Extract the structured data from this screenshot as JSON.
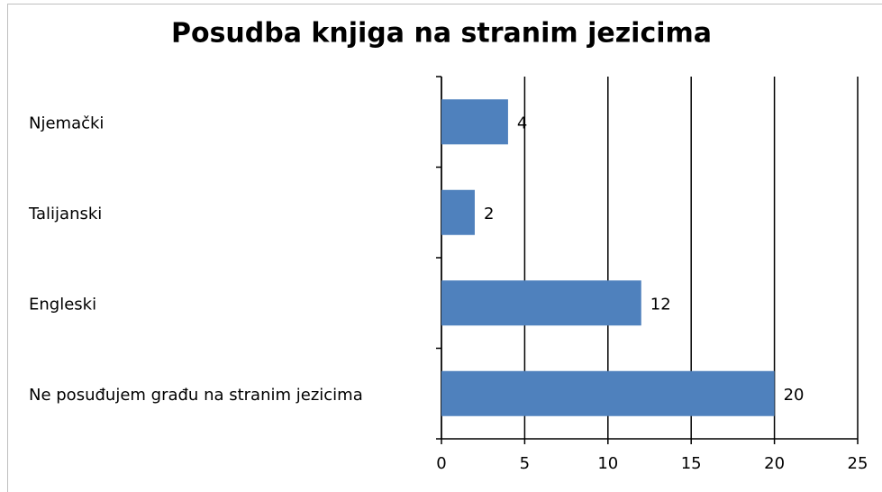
{
  "chart_data": {
    "type": "bar",
    "orientation": "horizontal",
    "title": "Posudba knjiga na stranim jezicima",
    "categories": [
      "Njemački",
      "Talijanski",
      "Engleski",
      "Ne posuđujem građu na stranim jezicima"
    ],
    "values": [
      4,
      2,
      12,
      20
    ],
    "color": "#4f81bd",
    "xlim": [
      0,
      25
    ],
    "xticks": [
      0,
      5,
      10,
      15,
      20,
      25
    ],
    "grid": true
  }
}
